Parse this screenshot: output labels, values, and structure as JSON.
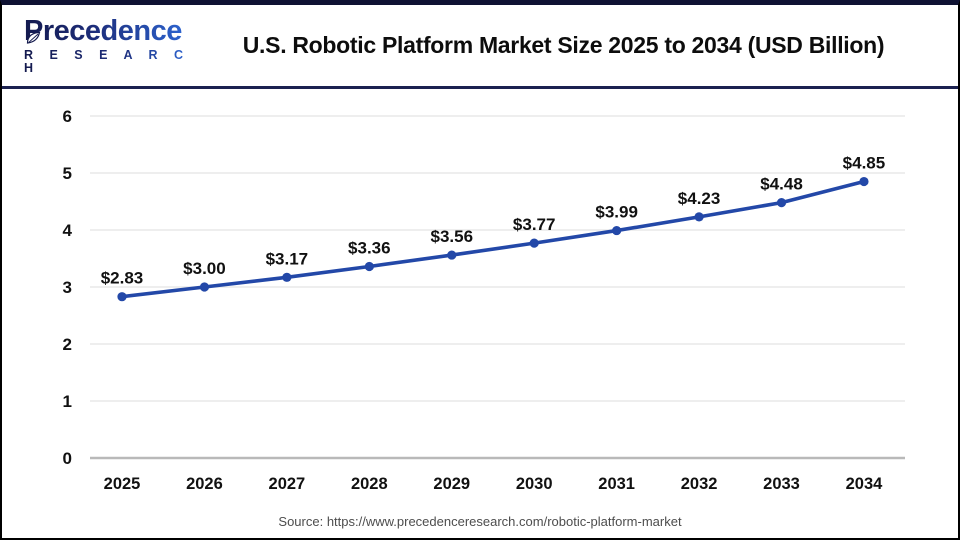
{
  "logo": {
    "word": "Precedence",
    "sub": "R E S E A R C H"
  },
  "header": {
    "title": "U.S. Robotic Platform Market Size 2025 to 2034 (USD Billion)"
  },
  "footer": {
    "source": "Source: https://www.precedenceresearch.com/robotic-platform-market"
  },
  "chart_data": {
    "type": "line",
    "title": "U.S. Robotic Platform Market Size 2025 to 2034 (USD Billion)",
    "categories": [
      "2025",
      "2026",
      "2027",
      "2028",
      "2029",
      "2030",
      "2031",
      "2032",
      "2033",
      "2034"
    ],
    "values": [
      2.83,
      3.0,
      3.17,
      3.36,
      3.56,
      3.77,
      3.99,
      4.23,
      4.48,
      4.85
    ],
    "point_labels": [
      "$2.83",
      "$3.00",
      "$3.17",
      "$3.36",
      "$3.56",
      "$3.77",
      "$3.99",
      "$4.23",
      "$4.48",
      "$4.85"
    ],
    "xlabel": "",
    "ylabel": "",
    "ylim": [
      0,
      6
    ],
    "yticks": [
      0,
      1,
      2,
      3,
      4,
      5,
      6
    ],
    "grid": true,
    "legend": "none",
    "line_color": "#2348a8",
    "marker_color": "#2348a8",
    "gridline_color": "#e8e8e8",
    "axis_line_color": "#b9b9b9",
    "label_color": "#111111"
  }
}
